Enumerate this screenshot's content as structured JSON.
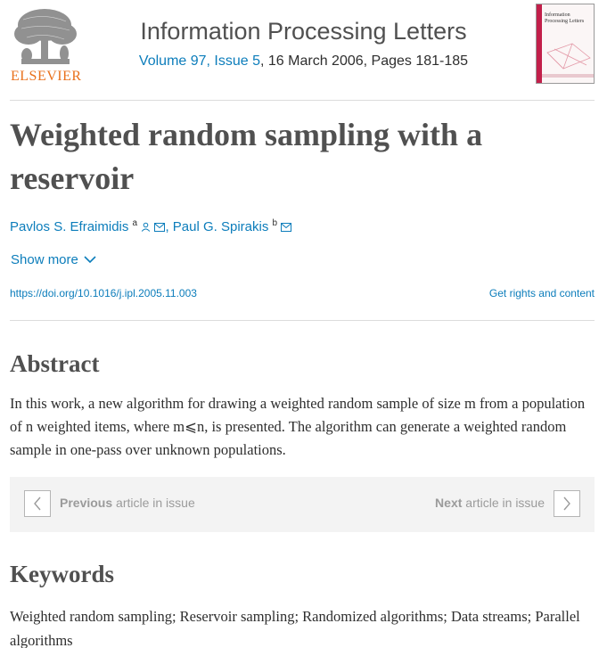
{
  "header": {
    "publisher": "ELSEVIER",
    "journal_title": "Information Processing Letters",
    "volume_issue": "Volume 97, Issue 5",
    "date_pages": ", 16 March 2006, Pages 181-185",
    "cover_title": "Information Processing Letters"
  },
  "article": {
    "title": "Weighted random sampling with a reservoir",
    "authors": [
      {
        "name": "Pavlos S. Efraimidis",
        "sup": "a",
        "icons": [
          "person-icon",
          "mail-icon"
        ]
      },
      {
        "name": "Paul G. Spirakis",
        "sup": "b",
        "icons": [
          "mail-icon"
        ]
      }
    ],
    "author_separator": ",",
    "show_more": "Show more",
    "doi": "https://doi.org/10.1016/j.ipl.2005.11.003",
    "rights": "Get rights and content"
  },
  "abstract": {
    "heading": "Abstract",
    "text": "In this work, a new algorithm for drawing a weighted random sample of size m from a population of n weighted items, where m⩽n, is presented. The algorithm can generate a weighted random sample in one-pass over unknown populations."
  },
  "navigation": {
    "previous_bold": "Previous",
    "previous_rest": " article in issue",
    "next_bold": "Next",
    "next_rest": " article in issue"
  },
  "keywords": {
    "heading": "Keywords",
    "items": "Weighted random sampling; Reservoir sampling; Randomized algorithms; Data streams; Parallel algorithms"
  },
  "colors": {
    "link": "#0c7dbb",
    "publisher_orange": "#e9711c",
    "text": "#2e2e2e"
  }
}
